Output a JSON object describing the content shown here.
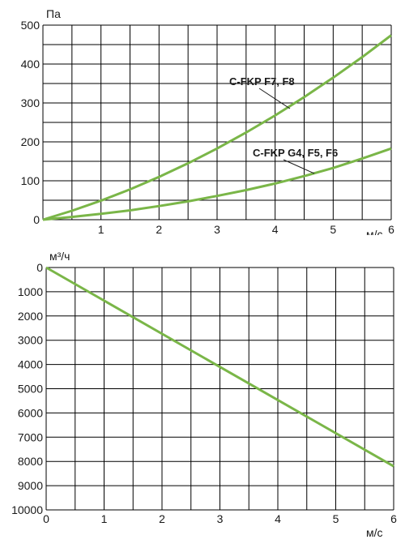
{
  "colors": {
    "curve": "#7ab648",
    "grid": "#000000",
    "text": "#1a1a1a"
  },
  "chart_data": [
    {
      "type": "line",
      "title": "",
      "xlabel": "м/с",
      "ylabel": "Па",
      "xlim": [
        0,
        6
      ],
      "ylim": [
        0,
        500
      ],
      "x_ticks": [
        1,
        2,
        3,
        4,
        5,
        6
      ],
      "y_ticks": [
        0,
        100,
        200,
        300,
        400,
        500
      ],
      "grid": true,
      "series": [
        {
          "name": "C-FKP F7, F8",
          "x": [
            0,
            0.5,
            1,
            1.5,
            2,
            2.5,
            3,
            3.5,
            4,
            4.5,
            5,
            5.5,
            6
          ],
          "y": [
            0,
            23,
            49,
            78,
            110,
            145,
            183,
            224,
            268,
            315,
            365,
            418,
            474
          ]
        },
        {
          "name": "C-FKP G4, F5, F6",
          "x": [
            0,
            0.5,
            1,
            1.5,
            2,
            2.5,
            3,
            3.5,
            4,
            4.5,
            5,
            5.5,
            6
          ],
          "y": [
            0,
            7,
            15,
            24,
            35,
            47,
            61,
            76,
            93,
            112,
            133,
            157,
            183
          ]
        }
      ]
    },
    {
      "type": "line",
      "title": "",
      "xlabel": "м/с",
      "ylabel": "м³/ч",
      "xlim": [
        0,
        6
      ],
      "ylim": [
        10000,
        0
      ],
      "x_ticks": [
        0,
        1,
        2,
        3,
        4,
        5,
        6
      ],
      "y_ticks": [
        0,
        1000,
        2000,
        3000,
        4000,
        5000,
        6000,
        7000,
        8000,
        9000,
        10000
      ],
      "grid": true,
      "series": [
        {
          "x": [
            0,
            6
          ],
          "y": [
            0,
            8200
          ]
        }
      ]
    }
  ]
}
